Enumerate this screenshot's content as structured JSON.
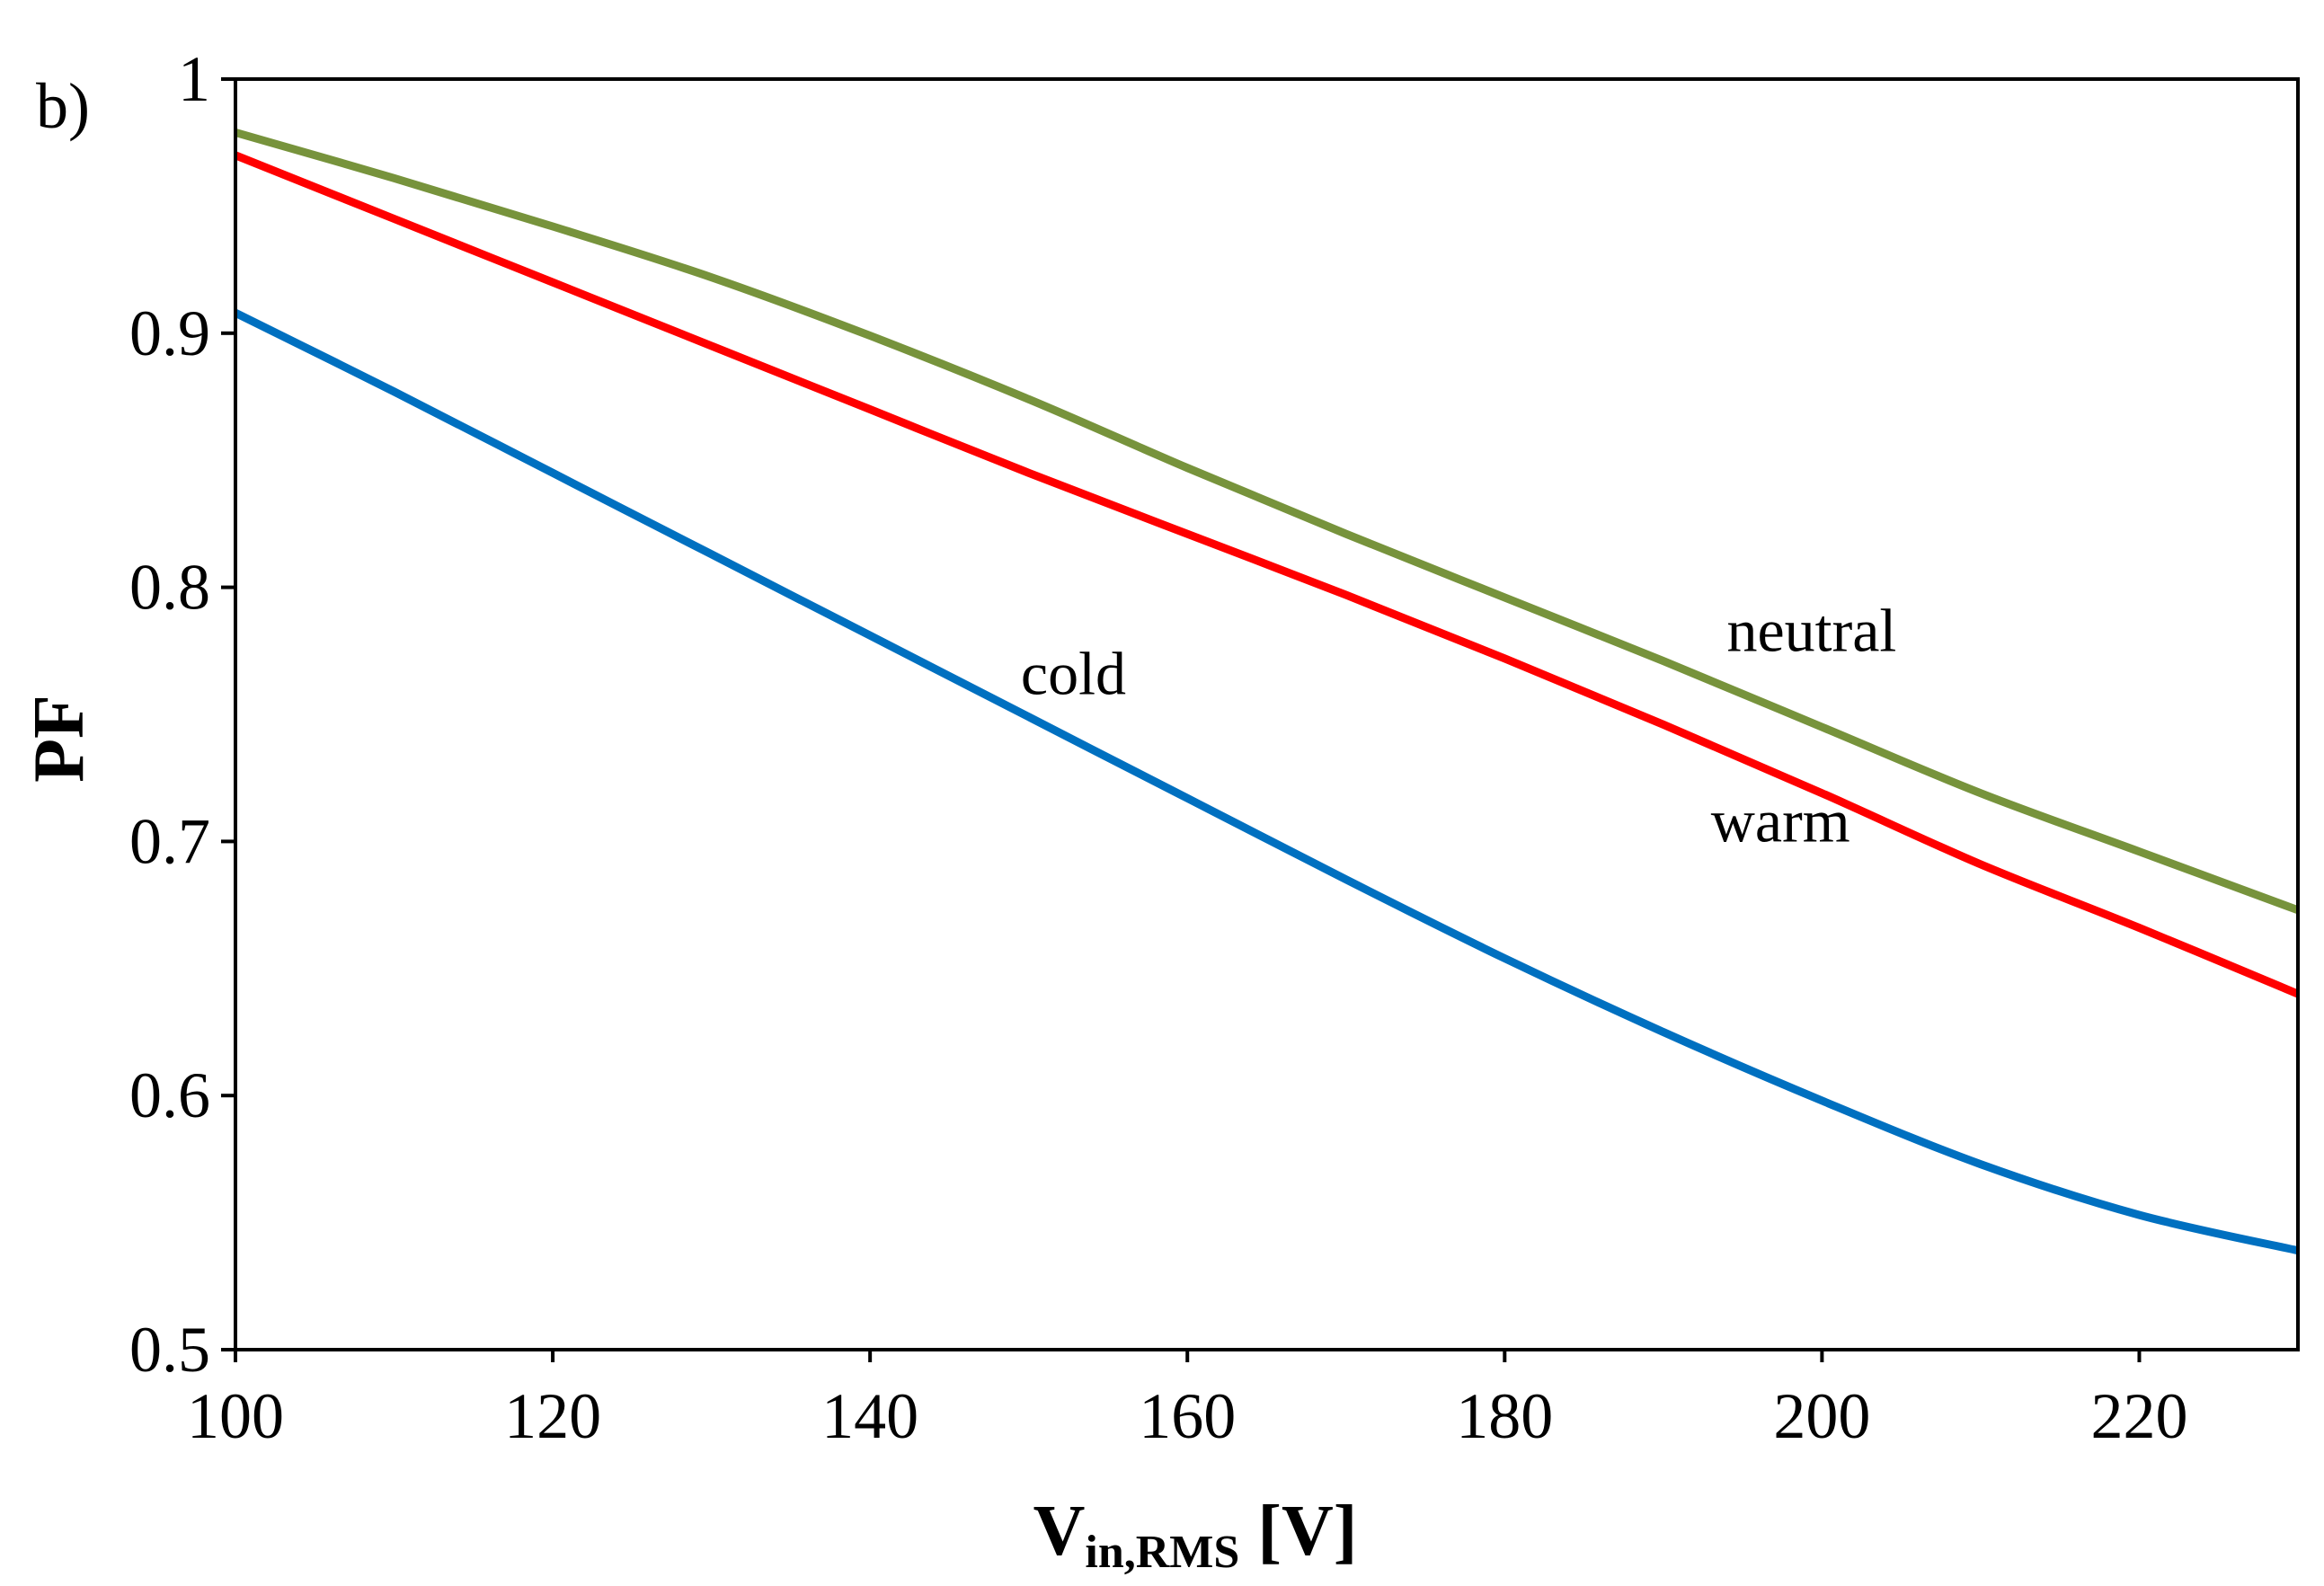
{
  "chart_data": {
    "type": "line",
    "panel_label": "b)",
    "title": "",
    "xlabel": {
      "main": "V",
      "subscript": "in,RMS",
      "suffix": " [V]"
    },
    "ylabel": "PF",
    "xlim": [
      100,
      230
    ],
    "ylim": [
      0.5,
      1
    ],
    "x_ticks": [
      100,
      120,
      140,
      160,
      180,
      200,
      220
    ],
    "x_tick_labels": [
      "100",
      "120",
      "140",
      "160",
      "180",
      "200",
      "220"
    ],
    "y_ticks": [
      0.5,
      0.6,
      0.7,
      0.8,
      0.9,
      1
    ],
    "y_tick_labels": [
      "0.5",
      "0.6",
      "0.7",
      "0.8",
      "0.9",
      "1"
    ],
    "grid": false,
    "series": [
      {
        "name": "neutral",
        "label": "neutral",
        "color": "#77933C",
        "label_at": [
          194,
          0.775
        ],
        "x": [
          100,
          110,
          120,
          130,
          140,
          150,
          160,
          170,
          180,
          190,
          200,
          210,
          220,
          230
        ],
        "values": [
          0.979,
          0.961,
          0.942,
          0.922,
          0.899,
          0.874,
          0.847,
          0.821,
          0.796,
          0.771,
          0.745,
          0.719,
          0.696,
          0.673
        ]
      },
      {
        "name": "warm",
        "label": "warm",
        "color": "#FF0000",
        "label_at": [
          193,
          0.7
        ],
        "x": [
          100,
          110,
          120,
          130,
          140,
          150,
          160,
          170,
          180,
          190,
          200,
          210,
          220,
          230
        ],
        "values": [
          0.97,
          0.945,
          0.92,
          0.895,
          0.87,
          0.845,
          0.821,
          0.797,
          0.772,
          0.746,
          0.719,
          0.691,
          0.666,
          0.64
        ]
      },
      {
        "name": "cold",
        "label": "cold",
        "color": "#0070C0",
        "label_at": [
          149.5,
          0.758
        ],
        "x": [
          100,
          110,
          120,
          130,
          140,
          150,
          160,
          170,
          180,
          190,
          200,
          210,
          220,
          230
        ],
        "values": [
          0.908,
          0.877,
          0.845,
          0.813,
          0.781,
          0.749,
          0.717,
          0.685,
          0.654,
          0.625,
          0.598,
          0.573,
          0.553,
          0.539
        ]
      }
    ]
  }
}
